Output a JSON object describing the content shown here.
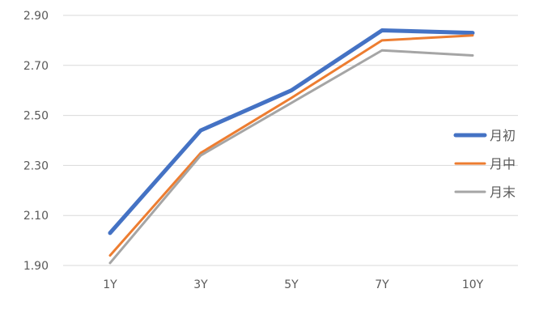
{
  "chart_data": {
    "type": "line",
    "categories": [
      "1Y",
      "3Y",
      "5Y",
      "7Y",
      "10Y"
    ],
    "series": [
      {
        "name": "月初",
        "values": [
          2.03,
          2.44,
          2.6,
          2.84,
          2.83
        ],
        "color": "#4472C4",
        "stroke_width": 5
      },
      {
        "name": "月中",
        "values": [
          1.94,
          2.35,
          2.57,
          2.8,
          2.82
        ],
        "color": "#ED7D31",
        "stroke_width": 3
      },
      {
        "name": "月末",
        "values": [
          1.91,
          2.34,
          2.55,
          2.76,
          2.74
        ],
        "color": "#A5A5A5",
        "stroke_width": 3
      }
    ],
    "yticks": [
      "1.90",
      "2.10",
      "2.30",
      "2.50",
      "2.70",
      "2.90"
    ],
    "ylim": [
      1.9,
      2.9
    ],
    "grid": true,
    "legend_position": "right",
    "title": "",
    "xlabel": "",
    "ylabel": ""
  }
}
